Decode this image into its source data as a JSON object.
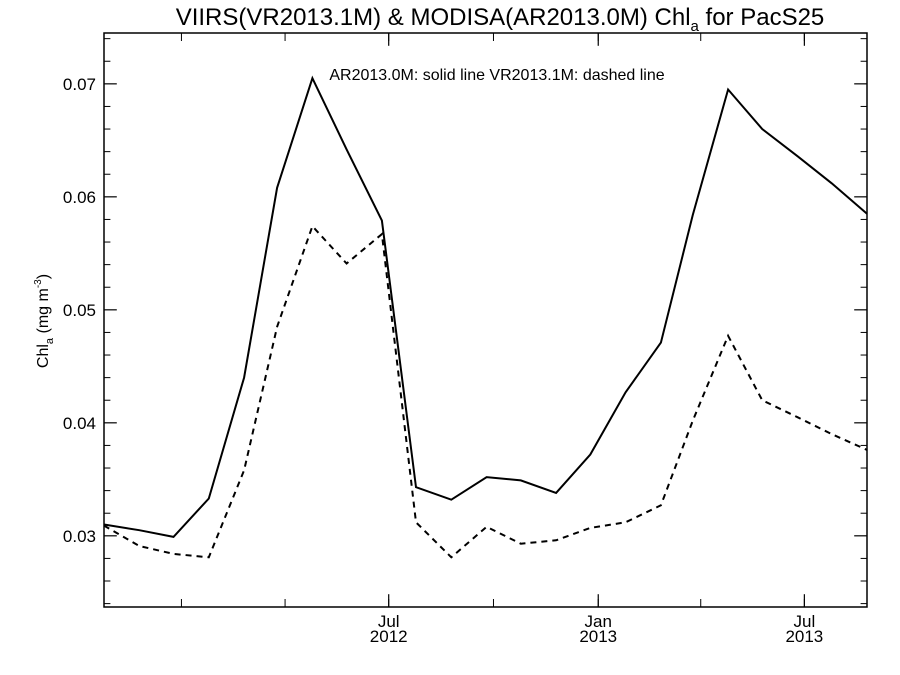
{
  "chart_data": {
    "type": "line",
    "title_main": "VIIRS(VR2013.1M) & MODISA(AR2013.0M)  Chl",
    "title_sub": "a",
    "title_tail": " for PacS25",
    "annotation": "AR2013.0M: solid line   VR2013.1M: dashed line",
    "ylabel_main": "Chl",
    "ylabel_sub": "a",
    "ylabel_tail": " (mg m",
    "ylabel_sup": "-3",
    "ylabel_close": ")",
    "xlim": [
      "2011-10-25",
      "2013-08-25"
    ],
    "ylim": [
      0.0237,
      0.0745
    ],
    "y_ticks": [
      0.03,
      0.04,
      0.05,
      0.06,
      0.07
    ],
    "y_tick_labels": [
      "0.03",
      "0.04",
      "0.05",
      "0.06",
      "0.07"
    ],
    "y_minor_step": 0.002,
    "x_minor_ticks": [
      "2011-10-01",
      "2012-01-01",
      "2012-04-01",
      "2012-07-01",
      "2012-10-01",
      "2013-01-01",
      "2013-04-01",
      "2013-07-01"
    ],
    "x_major_ticks": [
      {
        "date": "2012-07-01",
        "month": "Jul",
        "year": "2012"
      },
      {
        "date": "2013-01-01",
        "month": "Jan",
        "year": "2013"
      },
      {
        "date": "2013-07-01",
        "month": "Jul",
        "year": "2013"
      }
    ],
    "series": [
      {
        "name": "AR2013.0M",
        "style": "solid",
        "color": "#000000",
        "x": [
          "2011-10-25",
          "2011-11-25",
          "2011-12-25",
          "2012-01-25",
          "2012-02-25",
          "2012-03-25",
          "2012-04-25",
          "2012-05-25",
          "2012-06-25",
          "2012-07-25",
          "2012-08-25",
          "2012-09-25",
          "2012-10-25",
          "2012-11-25",
          "2012-12-25",
          "2013-01-25",
          "2013-02-25",
          "2013-03-25",
          "2013-04-25",
          "2013-05-25",
          "2013-06-25",
          "2013-07-25",
          "2013-08-25"
        ],
        "values": [
          0.031,
          0.0305,
          0.0299,
          0.0333,
          0.044,
          0.0608,
          0.0705,
          0.0642,
          0.0579,
          0.0343,
          0.0332,
          0.0352,
          0.0349,
          0.0338,
          0.0372,
          0.0427,
          0.0471,
          0.0584,
          0.0695,
          0.066,
          0.0636,
          0.0612,
          0.0585
        ]
      },
      {
        "name": "VR2013.1M",
        "style": "dashed",
        "color": "#000000",
        "x": [
          "2011-10-25",
          "2011-11-25",
          "2011-12-25",
          "2012-01-25",
          "2012-02-25",
          "2012-03-25",
          "2012-04-25",
          "2012-05-25",
          "2012-06-25",
          "2012-07-25",
          "2012-08-25",
          "2012-09-25",
          "2012-10-25",
          "2012-11-25",
          "2012-12-25",
          "2013-01-25",
          "2013-02-25",
          "2013-03-25",
          "2013-04-25",
          "2013-05-25",
          "2013-06-25",
          "2013-07-25",
          "2013-08-25"
        ],
        "values": [
          0.0309,
          0.0291,
          0.0284,
          0.0281,
          0.0358,
          0.0485,
          0.0574,
          0.0541,
          0.0567,
          0.0312,
          0.0281,
          0.0308,
          0.0293,
          0.0296,
          0.0307,
          0.0312,
          0.0327,
          0.0402,
          0.0477,
          0.042,
          0.0405,
          0.039,
          0.0376
        ]
      }
    ],
    "grid": false,
    "legend": "none (text annotation at top)"
  }
}
